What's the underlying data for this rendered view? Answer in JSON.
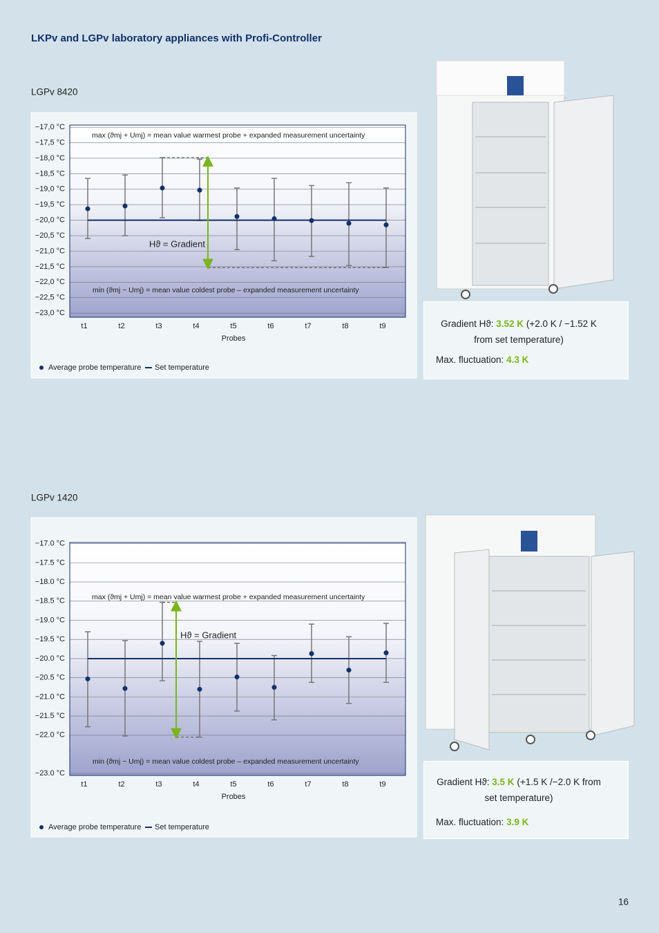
{
  "header": {
    "title": "LKPv and LGPv laboratory appliances with Profi-Controller"
  },
  "sections": [
    {
      "model": "LGPv 8420",
      "gradient_label": "Gradient Hϑ:",
      "gradient_value": "3.52 K",
      "gradient_note": "(+2.0 K / −1.52 K from set temperature)",
      "fluctuation_label": "Max. fluctuation:",
      "fluctuation_value": "4.3 K"
    },
    {
      "model": "LGPv 1420",
      "gradient_label": "Gradient Hϑ:",
      "gradient_value": "3.5 K",
      "gradient_note": "(+1.5 K /−2.0 K from set temperature)",
      "fluctuation_label": "Max. fluctuation:",
      "fluctuation_value": "3.9 K"
    }
  ],
  "chart_data": [
    {
      "type": "errorbar",
      "x_label": "Probes",
      "categories": [
        "t1",
        "t2",
        "t3",
        "t4",
        "t5",
        "t6",
        "t7",
        "t8",
        "t9"
      ],
      "series": [
        {
          "name": "Average probe temperature",
          "color": "#12306a",
          "values": [
            -19.63,
            -19.54,
            -18.96,
            -19.03,
            -19.88,
            -19.95,
            -20.01,
            -20.1,
            -20.15
          ],
          "high": [
            -18.65,
            -18.54,
            -17.98,
            -18.03,
            -18.96,
            -18.65,
            -18.88,
            -18.79,
            -18.96
          ],
          "low": [
            -20.59,
            -20.5,
            -19.92,
            -20.01,
            -20.95,
            -21.31,
            -21.17,
            -21.46,
            -21.53
          ]
        },
        {
          "name": "Set temperature",
          "color": "#12306a",
          "values": [
            -20,
            -20,
            -20,
            -20,
            -20,
            -20,
            -20,
            -20,
            -20
          ]
        }
      ],
      "annotations": [
        "max (ϑmj + Umj) = mean value warmest probe + expanded measurement uncertainty",
        "min (ϑmj − Umj) = mean value coldest probe – expanded measurement uncertainty",
        "Hϑ = Gradient"
      ],
      "ylim": [
        -23.13,
        -16.93
      ],
      "yticks": [
        {
          "value": -17,
          "label": "−17,0 °C"
        },
        {
          "value": -17.5,
          "label": "−17,5 °C"
        },
        {
          "value": -18,
          "label": "−18,0 °C"
        },
        {
          "value": -18.5,
          "label": "−18,5 °C"
        },
        {
          "value": -19,
          "label": "−19,0 °C"
        },
        {
          "value": -19.5,
          "label": "−19,5 °C"
        },
        {
          "value": -20,
          "label": "−20,0 °C"
        },
        {
          "value": -20.5,
          "label": "−20,5 °C"
        },
        {
          "value": -21,
          "label": "−21,0 °C"
        },
        {
          "value": -21.5,
          "label": "−21,5 °C"
        },
        {
          "value": -22,
          "label": "−22,0 °C"
        },
        {
          "value": -22.5,
          "label": "−22,5 °C"
        },
        {
          "value": -23,
          "label": "−23,0 °C"
        }
      ],
      "grid": true,
      "gradient_color": "#7ab51d"
    },
    {
      "type": "errorbar",
      "x_label": "Probes",
      "categories": [
        "t1",
        "t2",
        "t3",
        "t4",
        "t5",
        "t6",
        "t7",
        "t8",
        "t9"
      ],
      "series": [
        {
          "name": "Average probe temperature",
          "color": "#12306a",
          "values": [
            -20.53,
            -20.78,
            -19.6,
            -20.8,
            -20.48,
            -20.75,
            -19.87,
            -20.3,
            -19.85
          ],
          "high": [
            -19.3,
            -19.53,
            -18.53,
            -19.55,
            -19.6,
            -19.92,
            -19.1,
            -19.43,
            -19.08
          ],
          "low": [
            -21.78,
            -22.02,
            -20.58,
            -22.05,
            -21.37,
            -21.6,
            -20.62,
            -21.17,
            -20.62
          ]
        },
        {
          "name": "Set temperature",
          "color": "#12306a",
          "values": [
            -20,
            -20,
            -20,
            -20,
            -20,
            -20,
            -20,
            -20,
            -20
          ]
        }
      ],
      "annotations": [
        "max (ϑmj + Umj) = mean value warmest probe + expanded measurement uncertainty",
        "min (ϑmj − Umj) = mean value coldest probe – expanded measurement uncertainty",
        "Hϑ = Gradient"
      ],
      "ylim": [
        -23.05,
        -16.97
      ],
      "yticks": [
        {
          "value": -17,
          "label": "−17.0 °C"
        },
        {
          "value": -17.5,
          "label": "−17.5 °C"
        },
        {
          "value": -18,
          "label": "−18.0 °C"
        },
        {
          "value": -18.5,
          "label": "−18.5 °C"
        },
        {
          "value": -19,
          "label": "−19.0 °C"
        },
        {
          "value": -19.5,
          "label": "−19.5 °C"
        },
        {
          "value": -20,
          "label": "−20.0 °C"
        },
        {
          "value": -20.5,
          "label": "−20.5 °C"
        },
        {
          "value": -21,
          "label": "−21.0 °C"
        },
        {
          "value": -21.5,
          "label": "−21.5 °C"
        },
        {
          "value": -22,
          "label": "−22.0 °C"
        },
        {
          "value": -23,
          "label": "−23.0 °C"
        }
      ],
      "grid": true,
      "gradient_color": "#7ab51d"
    }
  ],
  "footer": {
    "page": "16"
  }
}
